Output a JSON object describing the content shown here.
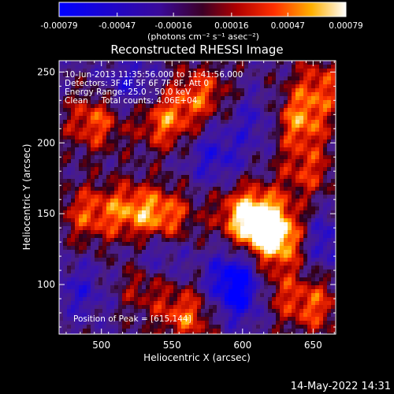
{
  "colorbar": {
    "tick_labels": [
      "-0.00079",
      "-0.00047",
      "-0.00016",
      "0.00016",
      "0.00047",
      "0.00079"
    ],
    "range": [
      -0.00079,
      0.00079
    ],
    "unit_label": "(photons cm⁻² s⁻¹ asec⁻²)"
  },
  "chart_data": {
    "type": "heatmap",
    "title": "Reconstructed RHESSI Image",
    "xlabel": "Heliocentric X (arcsec)",
    "ylabel": "Heliocentric Y (arcsec)",
    "xlim": [
      470,
      666
    ],
    "ylim": [
      65,
      258
    ],
    "xticks": [
      500,
      550,
      600,
      650
    ],
    "yticks": [
      100,
      150,
      200,
      250
    ],
    "annotations": [
      "10-Jun-2013 11:35:56.000 to 11:41:56.000",
      "Detectors: 3F 4F 5F 6F 7F 8F, Att 0",
      "Energy Range: 25.0 - 50.0 keV",
      "Clean     Total counts: 4.06E+04"
    ],
    "peak_label": "Position of Peak = [615,144]",
    "peak": [
      615,
      144
    ],
    "hotspots": [
      {
        "x": 615,
        "y": 144,
        "v": 1.0
      },
      {
        "x": 625,
        "y": 130,
        "v": 0.85
      },
      {
        "x": 600,
        "y": 150,
        "v": 0.7
      },
      {
        "x": 545,
        "y": 148,
        "v": 0.75
      },
      {
        "x": 520,
        "y": 152,
        "v": 0.7
      },
      {
        "x": 490,
        "y": 150,
        "v": 0.6
      },
      {
        "x": 495,
        "y": 215,
        "v": 0.7
      },
      {
        "x": 545,
        "y": 215,
        "v": 0.75
      },
      {
        "x": 570,
        "y": 235,
        "v": 0.65
      },
      {
        "x": 640,
        "y": 215,
        "v": 0.8
      },
      {
        "x": 655,
        "y": 240,
        "v": 0.6
      },
      {
        "x": 645,
        "y": 180,
        "v": 0.55
      },
      {
        "x": 560,
        "y": 78,
        "v": 0.7
      },
      {
        "x": 530,
        "y": 100,
        "v": 0.45
      },
      {
        "x": 650,
        "y": 85,
        "v": 0.65
      },
      {
        "x": 620,
        "y": 95,
        "v": 0.5
      }
    ],
    "coldspots": [
      {
        "x": 595,
        "y": 105,
        "v": -0.75
      },
      {
        "x": 600,
        "y": 90,
        "v": -0.6
      },
      {
        "x": 580,
        "y": 190,
        "v": -0.5
      },
      {
        "x": 520,
        "y": 240,
        "v": -0.45
      },
      {
        "x": 660,
        "y": 130,
        "v": -0.5
      },
      {
        "x": 485,
        "y": 95,
        "v": -0.4
      },
      {
        "x": 540,
        "y": 120,
        "v": -0.45
      },
      {
        "x": 610,
        "y": 215,
        "v": -0.4
      }
    ]
  },
  "footer": {
    "date": "14-May-2022 14:31"
  }
}
